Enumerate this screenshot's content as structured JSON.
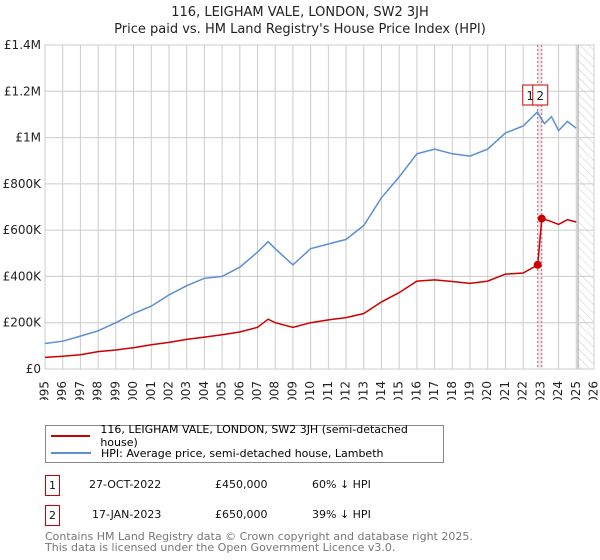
{
  "title_line1": "116, LEIGHAM VALE, LONDON, SW2 3JH",
  "title_line2": "Price paid vs. HM Land Registry's House Price Index (HPI)",
  "chart_data": {
    "type": "line",
    "xlim": [
      1995,
      2026
    ],
    "ylim": [
      0,
      1400000
    ],
    "yticks": [
      0,
      200000,
      400000,
      600000,
      800000,
      1000000,
      1200000,
      1400000
    ],
    "ytick_labels": [
      "£0",
      "£200K",
      "£400K",
      "£600K",
      "£800K",
      "£1M",
      "£1.2M",
      "£1.4M"
    ],
    "xticks": [
      1995,
      1996,
      1997,
      1998,
      1999,
      2000,
      2001,
      2002,
      2003,
      2004,
      2005,
      2006,
      2007,
      2008,
      2009,
      2010,
      2011,
      2012,
      2013,
      2014,
      2015,
      2016,
      2017,
      2018,
      2019,
      2020,
      2021,
      2022,
      2023,
      2024,
      2025,
      2026
    ],
    "grid": true,
    "forecast_hatch_from": 2025.1,
    "series": [
      {
        "name": "116, LEIGHAM VALE, LONDON, SW2 3JH (semi-detached house)",
        "color": "#cc0000",
        "x": [
          1995,
          1996,
          1997,
          1998,
          1999,
          2000,
          2001,
          2002,
          2003,
          2004,
          2005,
          2006,
          2007,
          2007.6,
          2008,
          2009,
          2010,
          2011,
          2012,
          2013,
          2014,
          2015,
          2016,
          2017,
          2018,
          2019,
          2020,
          2021,
          2022,
          2022.82,
          2023.05,
          2023.5,
          2024,
          2024.5,
          2025
        ],
        "y": [
          50000,
          55000,
          62000,
          75000,
          82000,
          92000,
          105000,
          115000,
          128000,
          138000,
          148000,
          160000,
          180000,
          215000,
          200000,
          180000,
          200000,
          212000,
          222000,
          240000,
          290000,
          330000,
          380000,
          385000,
          378000,
          370000,
          380000,
          410000,
          415000,
          450000,
          650000,
          640000,
          625000,
          645000,
          635000
        ]
      },
      {
        "name": "HPI: Average price, semi-detached house, Lambeth",
        "color": "#5b8fd0",
        "x": [
          1995,
          1996,
          1997,
          1998,
          1999,
          2000,
          2001,
          2002,
          2003,
          2004,
          2005,
          2006,
          2007,
          2007.6,
          2008,
          2009,
          2010,
          2011,
          2012,
          2013,
          2014,
          2015,
          2016,
          2017,
          2018,
          2019,
          2020,
          2021,
          2022,
          2022.8,
          2023.2,
          2023.6,
          2024,
          2024.5,
          2025
        ],
        "y": [
          110000,
          120000,
          142000,
          165000,
          200000,
          240000,
          272000,
          320000,
          360000,
          392000,
          400000,
          440000,
          505000,
          550000,
          520000,
          450000,
          520000,
          540000,
          560000,
          620000,
          740000,
          830000,
          930000,
          950000,
          930000,
          920000,
          950000,
          1020000,
          1050000,
          1110000,
          1060000,
          1090000,
          1030000,
          1070000,
          1040000
        ]
      }
    ],
    "sale_markers": [
      {
        "id": "1",
        "x": 2022.82,
        "y": 450000
      },
      {
        "id": "2",
        "x": 2023.05,
        "y": 650000
      }
    ]
  },
  "legend": {
    "property": "116, LEIGHAM VALE, LONDON, SW2 3JH (semi-detached house)",
    "hpi": "HPI: Average price, semi-detached house, Lambeth"
  },
  "transactions": [
    {
      "id": "1",
      "date": "27-OCT-2022",
      "price": "£450,000",
      "hpi": "60% ↓ HPI"
    },
    {
      "id": "2",
      "date": "17-JAN-2023",
      "price": "£650,000",
      "hpi": "39% ↓ HPI"
    }
  ],
  "footer_line1": "Contains HM Land Registry data © Crown copyright and database right 2025.",
  "footer_line2": "This data is licensed under the Open Government Licence v3.0."
}
